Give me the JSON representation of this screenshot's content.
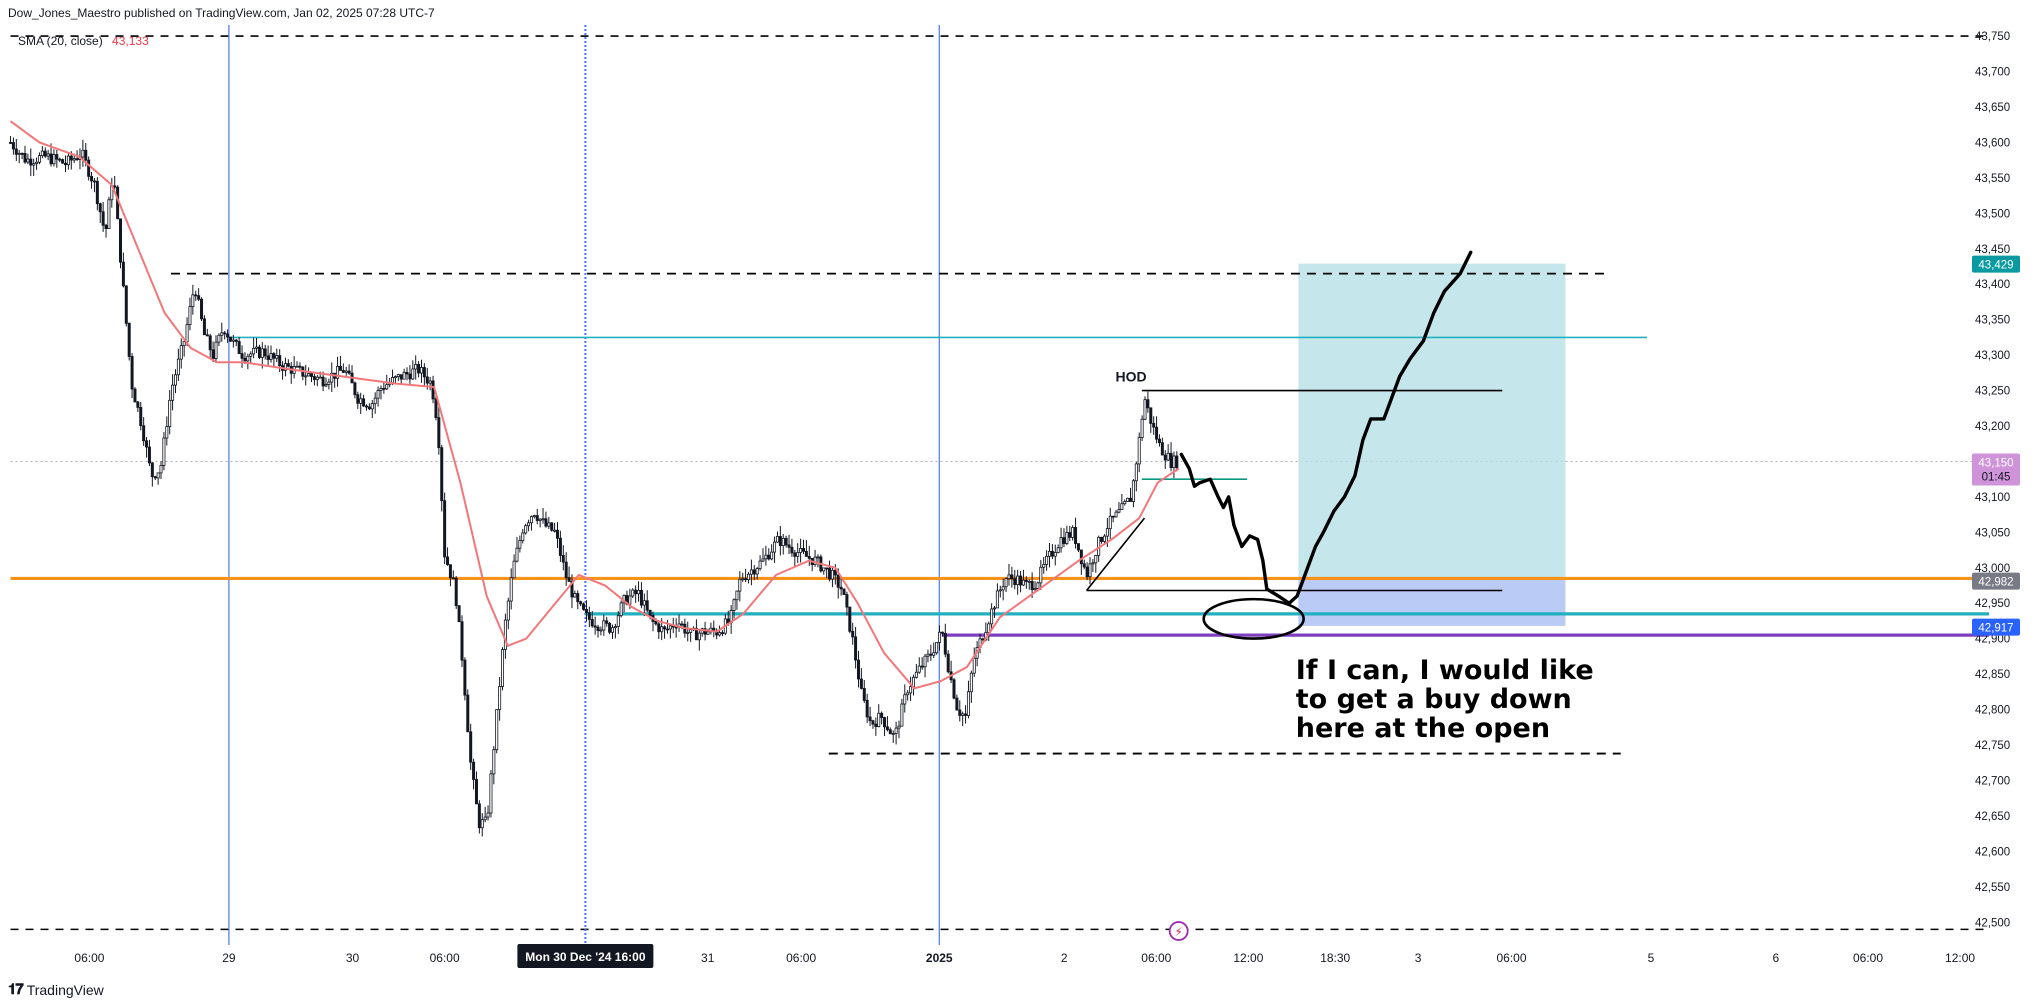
{
  "header": {
    "publisher_line": "Dow_Jones_Maestro published on TradingView.com, Jan 02, 2025 07:28 UTC-7",
    "indicator_name": "SMA (20, close)",
    "indicator_value": "43,133"
  },
  "footer": {
    "brand": "TradingView"
  },
  "chart_data": {
    "type": "candlestick",
    "ylim": [
      42475,
      43760
    ],
    "y_ticks": [
      42500,
      42550,
      42600,
      42650,
      42700,
      42750,
      42800,
      42850,
      42900,
      42950,
      43000,
      43050,
      43100,
      43150,
      43200,
      43250,
      43300,
      43350,
      43400,
      43450,
      43500,
      43550,
      43600,
      43650,
      43700,
      43750
    ],
    "y_tick_labels": [
      "42,500",
      "42,550",
      "42,600",
      "42,650",
      "42,700",
      "42,750",
      "42,800",
      "42,850",
      "42,900",
      "42,950",
      "43,000",
      "43,050",
      "43,100",
      "43,150",
      "43,200",
      "43,250",
      "43,300",
      "43,350",
      "43,400",
      "43,450",
      "43,500",
      "43,550",
      "43,600",
      "43,650",
      "43,700",
      "43,750"
    ],
    "xlim": [
      0,
      1550
    ],
    "x_ticks": [
      {
        "x": 68,
        "label": "06:00"
      },
      {
        "x": 174,
        "label": "29"
      },
      {
        "x": 268,
        "label": "30"
      },
      {
        "x": 338,
        "label": "06:00"
      },
      {
        "x": 538,
        "label": "31"
      },
      {
        "x": 609,
        "label": "06:00"
      },
      {
        "x": 714,
        "label": "2025"
      },
      {
        "x": 809,
        "label": "2"
      },
      {
        "x": 879,
        "label": "06:00"
      },
      {
        "x": 949,
        "label": "12:00"
      },
      {
        "x": 1015,
        "label": "18:30"
      },
      {
        "x": 1078,
        "label": "3"
      },
      {
        "x": 1149,
        "label": "06:00"
      },
      {
        "x": 1255,
        "label": "5"
      },
      {
        "x": 1350,
        "label": "6"
      },
      {
        "x": 1420,
        "label": "06:00"
      },
      {
        "x": 1490,
        "label": "12:00"
      }
    ],
    "crosshair_label": "Mon 30 Dec '24   16:00",
    "crosshair_x": 445,
    "session_lines_x": [
      174,
      445,
      714
    ],
    "price_path": [
      [
        8,
        43600
      ],
      [
        20,
        43575
      ],
      [
        35,
        43580
      ],
      [
        50,
        43570
      ],
      [
        62,
        43585
      ],
      [
        72,
        43540
      ],
      [
        80,
        43470
      ],
      [
        86,
        43560
      ],
      [
        92,
        43430
      ],
      [
        100,
        43260
      ],
      [
        108,
        43200
      ],
      [
        115,
        43130
      ],
      [
        122,
        43140
      ],
      [
        130,
        43250
      ],
      [
        140,
        43320
      ],
      [
        148,
        43400
      ],
      [
        155,
        43330
      ],
      [
        162,
        43300
      ],
      [
        170,
        43340
      ],
      [
        176,
        43320
      ],
      [
        185,
        43300
      ],
      [
        200,
        43305
      ],
      [
        215,
        43285
      ],
      [
        230,
        43275
      ],
      [
        245,
        43265
      ],
      [
        262,
        43280
      ],
      [
        272,
        43240
      ],
      [
        282,
        43230
      ],
      [
        290,
        43255
      ],
      [
        305,
        43270
      ],
      [
        318,
        43280
      ],
      [
        328,
        43260
      ],
      [
        333,
        43200
      ],
      [
        338,
        43020
      ],
      [
        346,
        42970
      ],
      [
        352,
        42860
      ],
      [
        358,
        42720
      ],
      [
        364,
        42640
      ],
      [
        370,
        42640
      ],
      [
        376,
        42760
      ],
      [
        384,
        42920
      ],
      [
        390,
        43000
      ],
      [
        398,
        43060
      ],
      [
        406,
        43080
      ],
      [
        414,
        43060
      ],
      [
        422,
        43050
      ],
      [
        430,
        42990
      ],
      [
        438,
        42950
      ],
      [
        446,
        42930
      ],
      [
        455,
        42920
      ],
      [
        465,
        42915
      ],
      [
        475,
        42955
      ],
      [
        485,
        42965
      ],
      [
        495,
        42925
      ],
      [
        505,
        42910
      ],
      [
        515,
        42925
      ],
      [
        525,
        42905
      ],
      [
        535,
        42910
      ],
      [
        545,
        42910
      ],
      [
        555,
        42925
      ],
      [
        563,
        42985
      ],
      [
        570,
        42995
      ],
      [
        580,
        43010
      ],
      [
        592,
        43040
      ],
      [
        600,
        43030
      ],
      [
        608,
        43020
      ],
      [
        620,
        43010
      ],
      [
        632,
        42990
      ],
      [
        640,
        42970
      ],
      [
        648,
        42900
      ],
      [
        655,
        42820
      ],
      [
        662,
        42780
      ],
      [
        670,
        42790
      ],
      [
        680,
        42760
      ],
      [
        690,
        42830
      ],
      [
        700,
        42860
      ],
      [
        708,
        42880
      ],
      [
        716,
        42910
      ],
      [
        722,
        42850
      ],
      [
        728,
        42800
      ],
      [
        734,
        42790
      ],
      [
        740,
        42870
      ],
      [
        748,
        42910
      ],
      [
        756,
        42950
      ],
      [
        764,
        42985
      ],
      [
        772,
        42985
      ],
      [
        780,
        42975
      ],
      [
        788,
        42980
      ],
      [
        796,
        43010
      ],
      [
        806,
        43040
      ],
      [
        816,
        43050
      ],
      [
        826,
        42990
      ],
      [
        834,
        43030
      ],
      [
        842,
        43060
      ],
      [
        852,
        43080
      ],
      [
        860,
        43100
      ],
      [
        866,
        43180
      ],
      [
        870,
        43240
      ],
      [
        876,
        43200
      ],
      [
        882,
        43170
      ],
      [
        890,
        43150
      ],
      [
        896,
        43150
      ]
    ],
    "sma_path": [
      [
        8,
        43630
      ],
      [
        30,
        43600
      ],
      [
        60,
        43580
      ],
      [
        85,
        43540
      ],
      [
        105,
        43450
      ],
      [
        125,
        43360
      ],
      [
        145,
        43310
      ],
      [
        165,
        43290
      ],
      [
        185,
        43290
      ],
      [
        220,
        43280
      ],
      [
        260,
        43270
      ],
      [
        300,
        43260
      ],
      [
        330,
        43255
      ],
      [
        350,
        43120
      ],
      [
        370,
        42960
      ],
      [
        386,
        42890
      ],
      [
        400,
        42900
      ],
      [
        420,
        42945
      ],
      [
        440,
        42990
      ],
      [
        460,
        42975
      ],
      [
        480,
        42945
      ],
      [
        500,
        42925
      ],
      [
        520,
        42915
      ],
      [
        545,
        42910
      ],
      [
        565,
        42935
      ],
      [
        590,
        42990
      ],
      [
        615,
        43010
      ],
      [
        635,
        43000
      ],
      [
        652,
        42950
      ],
      [
        672,
        42880
      ],
      [
        695,
        42830
      ],
      [
        715,
        42840
      ],
      [
        735,
        42860
      ],
      [
        760,
        42930
      ],
      [
        790,
        42970
      ],
      [
        820,
        43010
      ],
      [
        845,
        43040
      ],
      [
        866,
        43070
      ],
      [
        880,
        43120
      ],
      [
        896,
        43140
      ]
    ],
    "levels": [
      {
        "name": "upper-dashed-level",
        "price": 43415,
        "x1": 130,
        "x2": 1222,
        "style": "dashed",
        "color": "#000000"
      },
      {
        "name": "cyan-resistance-level",
        "price": 43325,
        "x1": 176,
        "x2": 1252,
        "style": "solid",
        "color": "#22b0c0"
      },
      {
        "name": "hod-level",
        "price": 43250,
        "x1": 868,
        "x2": 1142,
        "style": "solid",
        "color": "#000000"
      },
      {
        "name": "short-teal-level",
        "price": 43125,
        "x1": 868,
        "x2": 948,
        "style": "solid",
        "color": "#089981"
      },
      {
        "name": "orange-support-level",
        "price": 42985,
        "x1": 8,
        "x2": 1512,
        "style": "solid",
        "color": "#f7931a"
      },
      {
        "name": "low-black-level",
        "price": 42968,
        "x1": 826,
        "x2": 1142,
        "style": "solid",
        "color": "#000000"
      },
      {
        "name": "cyan-support-level",
        "price": 42935,
        "x1": 445,
        "x2": 1512,
        "style": "solid",
        "color": "#22b0c0"
      },
      {
        "name": "purple-level",
        "price": 42905,
        "x1": 716,
        "x2": 1512,
        "style": "solid",
        "color": "#7e3fbf"
      },
      {
        "name": "lower-dashed-level",
        "price": 42738,
        "x1": 630,
        "x2": 1232,
        "style": "dashed",
        "color": "#000000"
      }
    ],
    "top_dashed_price": 43750,
    "bottom_dashed_price": 42490,
    "trade_box": {
      "x1": 987,
      "x2": 1190,
      "entry": 42985,
      "target": 43429,
      "stop": 42918
    },
    "projection_path": [
      [
        898,
        43160
      ],
      [
        904,
        43140
      ],
      [
        908,
        43115
      ],
      [
        912,
        43120
      ],
      [
        920,
        43125
      ],
      [
        926,
        43100
      ],
      [
        930,
        43085
      ],
      [
        934,
        43100
      ],
      [
        938,
        43060
      ],
      [
        944,
        43030
      ],
      [
        950,
        43045
      ],
      [
        956,
        43040
      ],
      [
        960,
        43010
      ],
      [
        963,
        42970
      ],
      [
        972,
        42960
      ],
      [
        980,
        42950
      ],
      [
        986,
        42960
      ],
      [
        992,
        42990
      ],
      [
        1000,
        43030
      ],
      [
        1006,
        43050
      ],
      [
        1014,
        43080
      ],
      [
        1022,
        43100
      ],
      [
        1030,
        43130
      ],
      [
        1036,
        43180
      ],
      [
        1042,
        43210
      ],
      [
        1052,
        43210
      ],
      [
        1058,
        43240
      ],
      [
        1064,
        43270
      ],
      [
        1072,
        43295
      ],
      [
        1082,
        43320
      ],
      [
        1090,
        43360
      ],
      [
        1098,
        43390
      ],
      [
        1110,
        43415
      ],
      [
        1118,
        43445
      ]
    ],
    "annotations": {
      "hod_label": "HOD",
      "note_line1": "If I can, I would like",
      "note_line2": "to get a buy down",
      "note_line3": "here at the open"
    },
    "price_badges": [
      {
        "label": "43,429",
        "price": 43429,
        "color": "#089aa0"
      },
      {
        "label": "43,150",
        "sublabel": "01:45",
        "price": 43150,
        "color": "#ce93d8"
      },
      {
        "label": "42,982",
        "price": 42982,
        "color": "#787b86"
      },
      {
        "label": "42,917",
        "price": 42917,
        "color": "#2962ff"
      }
    ]
  },
  "colors": {
    "sma": "#f2777a",
    "candle": "#131722",
    "tp_fill": "#b2dfe5",
    "sl_fill": "#b3c5f5",
    "session_line": "#4a76e8"
  }
}
